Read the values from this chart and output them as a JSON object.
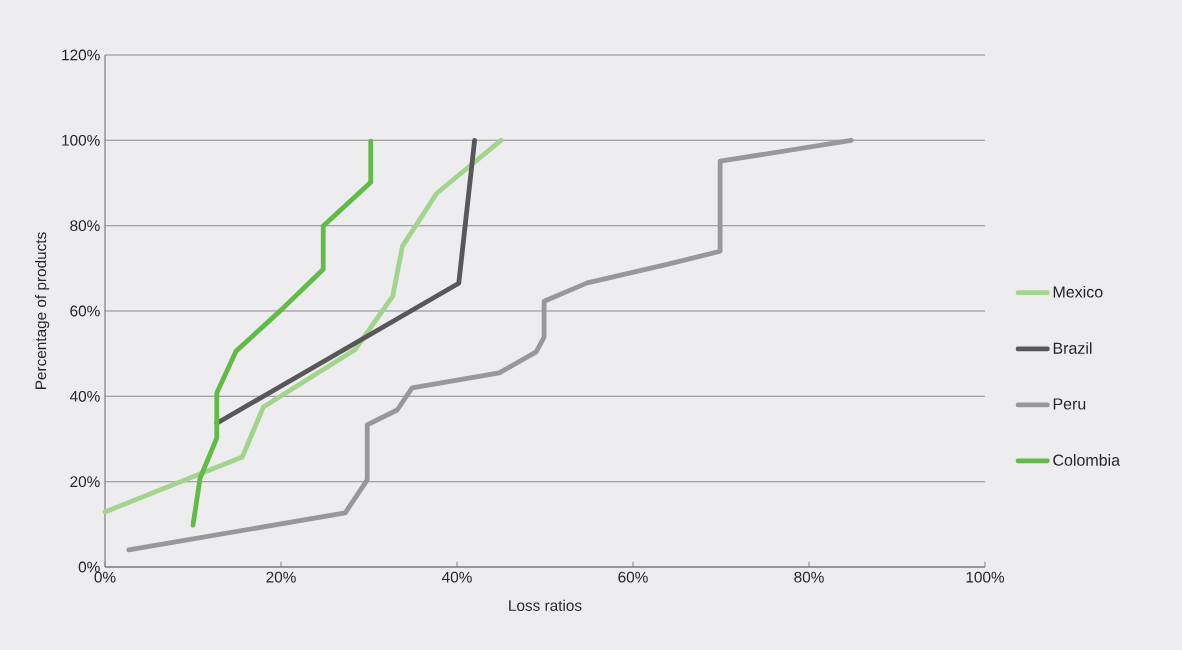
{
  "chart_data": {
    "type": "line",
    "xlabel": "Loss ratios",
    "ylabel": "Percentage of products",
    "xlim": [
      0,
      100
    ],
    "ylim": [
      0,
      120
    ],
    "xticks": [
      {
        "value": 0,
        "label": "0%"
      },
      {
        "value": 20,
        "label": "20%"
      },
      {
        "value": 40,
        "label": "40%"
      },
      {
        "value": 60,
        "label": "60%"
      },
      {
        "value": 80,
        "label": "80%"
      },
      {
        "value": 100,
        "label": "100%"
      }
    ],
    "yticks": [
      {
        "value": 0,
        "label": "0%"
      },
      {
        "value": 20,
        "label": "20%"
      },
      {
        "value": 40,
        "label": "40%"
      },
      {
        "value": 60,
        "label": "60%"
      },
      {
        "value": 80,
        "label": "80%"
      },
      {
        "value": 100,
        "label": "100%"
      },
      {
        "value": 120,
        "label": "120%"
      }
    ],
    "grid": "y",
    "legend": "right",
    "marker": "none",
    "line_style": "solid",
    "series": [
      {
        "name": "Mexico",
        "color": "#a3d48e",
        "x": [
          0,
          15.6,
          18,
          28.4,
          32.7,
          33.8,
          37.7,
          45
        ],
        "values": [
          12.9,
          25.8,
          37.5,
          50.9,
          63.5,
          75.2,
          87.6,
          100
        ]
      },
      {
        "name": "Brazil",
        "color": "#58585a",
        "x": [
          12.7,
          40.2,
          42
        ],
        "values": [
          33.7,
          66.5,
          100
        ]
      },
      {
        "name": "Peru",
        "color": "#97989b",
        "x": [
          2.7,
          27.3,
          29.8,
          29.8,
          33.2,
          34.9,
          44.8,
          49,
          49.9,
          49.9,
          54.8,
          64,
          69.9,
          69.9,
          84.8
        ],
        "values": [
          4,
          12.7,
          20.4,
          33.3,
          36.8,
          42,
          45.5,
          50.4,
          53.9,
          62.3,
          66.6,
          71,
          74,
          95.1,
          100
        ]
      },
      {
        "name": "Colombia",
        "color": "#62bb46",
        "x": [
          10,
          10.8,
          12.7,
          12.7,
          14.9,
          20,
          24.8,
          24.8,
          30.2,
          30.2
        ],
        "values": [
          9.8,
          20.8,
          30.2,
          40.8,
          50.6,
          60.2,
          69.8,
          79.9,
          90.2,
          99.8
        ]
      }
    ]
  }
}
